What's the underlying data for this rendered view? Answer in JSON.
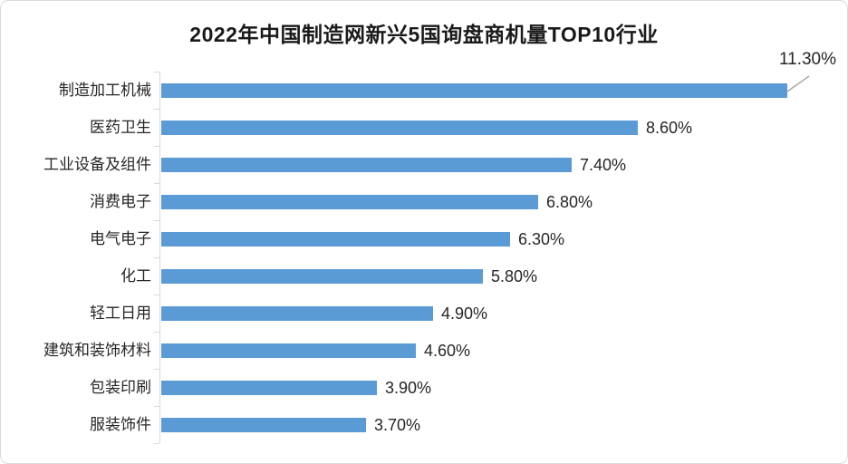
{
  "chart": {
    "title_prefix": "2022年中国制造网新兴5国询盘商机量",
    "title_bold": "TOP10",
    "title_suffix": "行业"
  },
  "chart_data": {
    "type": "bar",
    "orientation": "horizontal",
    "title": "2022年中国制造网新兴5国询盘商机量TOP10行业",
    "categories": [
      "制造加工机械",
      "医药卫生",
      "工业设备及组件",
      "消费电子",
      "电气电子",
      "化工",
      "轻工日用",
      "建筑和装饰材料",
      "包装印刷",
      "服装饰件"
    ],
    "values": [
      11.3,
      8.6,
      7.4,
      6.8,
      6.3,
      5.8,
      4.9,
      4.6,
      3.9,
      3.7
    ],
    "value_labels": [
      "11.30%",
      "8.60%",
      "7.40%",
      "6.80%",
      "6.30%",
      "5.80%",
      "4.90%",
      "4.60%",
      "3.90%",
      "3.70%"
    ],
    "xlabel": "",
    "ylabel": "",
    "xlim": [
      0,
      11.3
    ],
    "grid": false,
    "legend": false,
    "data_label_position": "outside-end",
    "first_label_callout": true,
    "colors": {
      "bar": "#5B9BD5",
      "axis": "#D9D9D9",
      "leader_line": "#A6A6A6",
      "text": "#262626",
      "card_border": "#D9D9D9"
    }
  }
}
